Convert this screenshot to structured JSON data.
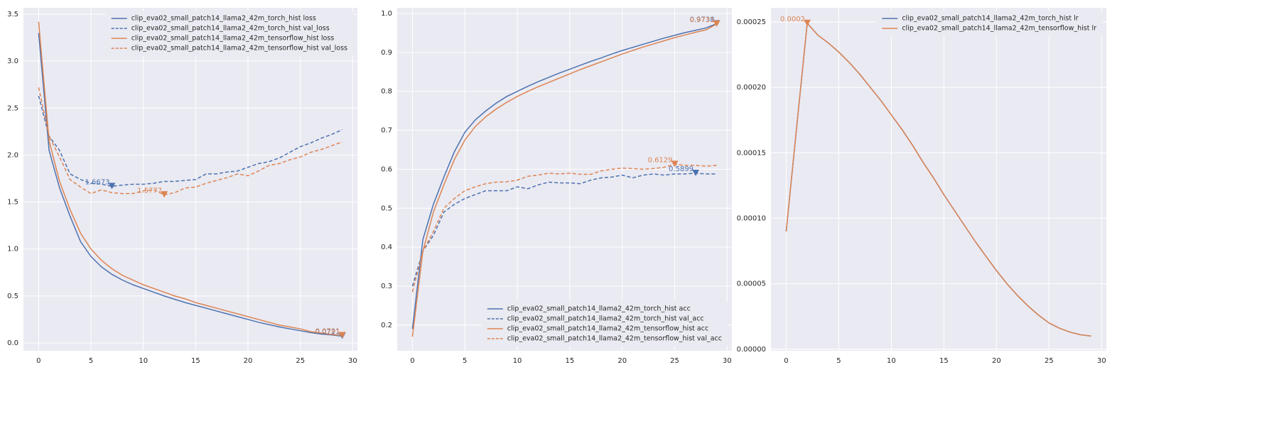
{
  "chart_data": [
    {
      "type": "line",
      "grid": true,
      "legend": "upper right",
      "x": [
        0,
        1,
        2,
        3,
        4,
        5,
        6,
        7,
        8,
        9,
        10,
        11,
        12,
        13,
        14,
        15,
        16,
        17,
        18,
        19,
        20,
        21,
        22,
        23,
        24,
        25,
        26,
        27,
        28,
        29
      ],
      "xlim": [
        -1.45,
        30.45
      ],
      "xticks": [
        0,
        5,
        10,
        15,
        20,
        25,
        30
      ],
      "ylim": [
        -0.083,
        3.568
      ],
      "yticks": [
        {
          "value": 0,
          "label": "0.0"
        },
        0.5,
        {
          "value": 1,
          "label": "1.0"
        },
        1.5,
        {
          "value": 2,
          "label": "2.0"
        },
        2.5,
        {
          "value": 3,
          "label": "3.0"
        },
        3.5
      ],
      "series": [
        {
          "name": "clip_eva02_small_patch14_llama2_42m_torch_hist loss",
          "color": "#4c72b0",
          "linestyle": "solid",
          "values": [
            3.3,
            2.05,
            1.65,
            1.35,
            1.08,
            0.92,
            0.81,
            0.73,
            0.67,
            0.62,
            0.58,
            0.54,
            0.5,
            0.465,
            0.43,
            0.4,
            0.37,
            0.34,
            0.31,
            0.28,
            0.25,
            0.22,
            0.195,
            0.17,
            0.15,
            0.13,
            0.11,
            0.095,
            0.085,
            0.0721
          ]
        },
        {
          "name": "clip_eva02_small_patch14_llama2_42m_torch_hist val_loss",
          "color": "#4c72b0",
          "linestyle": "dashed",
          "values": [
            2.63,
            2.2,
            2.05,
            1.8,
            1.74,
            1.7,
            1.69,
            1.6673,
            1.68,
            1.69,
            1.69,
            1.7,
            1.72,
            1.72,
            1.73,
            1.74,
            1.8,
            1.8,
            1.82,
            1.83,
            1.87,
            1.91,
            1.93,
            1.97,
            2.03,
            2.09,
            2.13,
            2.18,
            2.22,
            2.27
          ]
        },
        {
          "name": "clip_eva02_small_patch14_llama2_42m_tensorflow_hist loss",
          "color": "#dd8452",
          "linestyle": "solid",
          "values": [
            3.42,
            2.15,
            1.72,
            1.42,
            1.17,
            1.0,
            0.88,
            0.79,
            0.72,
            0.67,
            0.62,
            0.58,
            0.54,
            0.5,
            0.47,
            0.43,
            0.4,
            0.37,
            0.34,
            0.31,
            0.28,
            0.25,
            0.22,
            0.19,
            0.17,
            0.15,
            0.12,
            0.105,
            0.09,
            0.0791
          ]
        },
        {
          "name": "clip_eva02_small_patch14_llama2_42m_tensorflow_hist val_loss",
          "color": "#dd8452",
          "linestyle": "dashed",
          "values": [
            2.72,
            2.2,
            1.98,
            1.74,
            1.66,
            1.59,
            1.63,
            1.6,
            1.59,
            1.59,
            1.62,
            1.63,
            1.5777,
            1.6,
            1.65,
            1.66,
            1.7,
            1.73,
            1.76,
            1.8,
            1.78,
            1.83,
            1.89,
            1.91,
            1.95,
            1.98,
            2.03,
            2.06,
            2.1,
            2.14
          ]
        }
      ],
      "annotations": [
        {
          "x": 7,
          "y": 1.6673,
          "text": "1.6673",
          "color": "#4c72b0"
        },
        {
          "x": 12,
          "y": 1.5777,
          "text": "1.5777",
          "color": "#dd8452"
        },
        {
          "x": 29,
          "y": 0.0721,
          "text": "0.0721",
          "color": "#4c72b0"
        },
        {
          "x": 29,
          "y": 0.0791,
          "text": "0.0791",
          "color": "#dd8452"
        }
      ]
    },
    {
      "type": "line",
      "grid": true,
      "legend": "lower right",
      "x": [
        0,
        1,
        2,
        3,
        4,
        5,
        6,
        7,
        8,
        9,
        10,
        11,
        12,
        13,
        14,
        15,
        16,
        17,
        18,
        19,
        20,
        21,
        22,
        23,
        24,
        25,
        26,
        27,
        28,
        29
      ],
      "xlim": [
        -1.45,
        30.45
      ],
      "xticks": [
        0,
        5,
        10,
        15,
        20,
        25,
        30
      ],
      "ylim": [
        0.134,
        1.0146
      ],
      "yticks": [
        0.2,
        0.3,
        0.4,
        0.5,
        0.6,
        0.7,
        0.8,
        0.9,
        {
          "value": 1,
          "label": "1.0"
        }
      ],
      "series": [
        {
          "name": "clip_eva02_small_patch14_llama2_42m_torch_hist acc",
          "color": "#4c72b0",
          "linestyle": "solid",
          "values": [
            0.19,
            0.42,
            0.51,
            0.58,
            0.645,
            0.695,
            0.727,
            0.75,
            0.77,
            0.787,
            0.8,
            0.813,
            0.825,
            0.836,
            0.847,
            0.857,
            0.867,
            0.877,
            0.886,
            0.896,
            0.905,
            0.913,
            0.921,
            0.929,
            0.937,
            0.944,
            0.951,
            0.957,
            0.963,
            0.9738
          ]
        },
        {
          "name": "clip_eva02_small_patch14_llama2_42m_torch_hist val_acc",
          "color": "#4c72b0",
          "linestyle": "dashed",
          "values": [
            0.3,
            0.39,
            0.43,
            0.49,
            0.51,
            0.525,
            0.535,
            0.545,
            0.545,
            0.545,
            0.555,
            0.55,
            0.56,
            0.567,
            0.565,
            0.565,
            0.563,
            0.572,
            0.578,
            0.58,
            0.585,
            0.578,
            0.585,
            0.588,
            0.585,
            0.588,
            0.588,
            0.5899,
            0.588,
            0.588
          ]
        },
        {
          "name": "clip_eva02_small_patch14_llama2_42m_tensorflow_hist acc",
          "color": "#dd8452",
          "linestyle": "solid",
          "values": [
            0.17,
            0.39,
            0.49,
            0.56,
            0.625,
            0.675,
            0.71,
            0.735,
            0.755,
            0.772,
            0.787,
            0.8,
            0.812,
            0.823,
            0.834,
            0.845,
            0.856,
            0.866,
            0.876,
            0.886,
            0.896,
            0.905,
            0.914,
            0.922,
            0.93,
            0.938,
            0.945,
            0.952,
            0.958,
            0.9731
          ]
        },
        {
          "name": "clip_eva02_small_patch14_llama2_42m_tensorflow_hist val_acc",
          "color": "#dd8452",
          "linestyle": "dashed",
          "values": [
            0.285,
            0.39,
            0.44,
            0.5,
            0.525,
            0.545,
            0.555,
            0.563,
            0.567,
            0.568,
            0.572,
            0.582,
            0.585,
            0.59,
            0.588,
            0.59,
            0.587,
            0.587,
            0.596,
            0.6,
            0.603,
            0.602,
            0.6,
            0.602,
            0.605,
            0.6129,
            0.61,
            0.61,
            0.608,
            0.61
          ]
        }
      ],
      "annotations": [
        {
          "x": 29,
          "y": 0.9738,
          "text": "0.9738",
          "color": "#4c72b0"
        },
        {
          "x": 29,
          "y": 0.9731,
          "text": "0.9731",
          "color": "#dd8452"
        },
        {
          "x": 27,
          "y": 0.5899,
          "text": "0.5899",
          "color": "#4c72b0"
        },
        {
          "x": 25,
          "y": 0.6129,
          "text": "0.6129",
          "color": "#dd8452"
        }
      ]
    },
    {
      "type": "line",
      "grid": true,
      "legend": "upper right",
      "x": [
        0,
        1,
        2,
        3,
        4,
        5,
        6,
        7,
        8,
        9,
        10,
        11,
        12,
        13,
        14,
        15,
        16,
        17,
        18,
        19,
        20,
        21,
        22,
        23,
        24,
        25,
        26,
        27,
        28,
        29
      ],
      "xlim": [
        -1.45,
        30.45
      ],
      "xticks": [
        0,
        5,
        10,
        15,
        20,
        25,
        30
      ],
      "ylim": [
        -1.2e-06,
        0.0002608
      ],
      "yticks": [
        {
          "value": 0,
          "label": "0.00000"
        },
        {
          "value": 5e-05,
          "label": "0.00005"
        },
        {
          "value": 0.0001,
          "label": "0.00010"
        },
        {
          "value": 0.00015,
          "label": "0.00015"
        },
        {
          "value": 0.0002,
          "label": "0.00020"
        },
        {
          "value": 0.00025,
          "label": "0.00025"
        }
      ],
      "series": [
        {
          "name": "clip_eva02_small_patch14_llama2_42m_torch_hist lr",
          "color": "#4c72b0",
          "linestyle": "solid",
          "values": [
            9e-05,
            0.00017,
            0.000249,
            0.00024,
            0.000234,
            0.000227,
            0.000219,
            0.00021,
            0.0002,
            0.00019,
            0.000179,
            0.000168,
            0.000156,
            0.000143,
            0.000131,
            0.000118,
            0.000106,
            9.4e-05,
            8.2e-05,
            7.1e-05,
            6e-05,
            5e-05,
            4.1e-05,
            3.3e-05,
            2.6e-05,
            2e-05,
            1.6e-05,
            1.3e-05,
            1.1e-05,
            1e-05
          ]
        },
        {
          "name": "clip_eva02_small_patch14_llama2_42m_tensorflow_hist lr",
          "color": "#dd8452",
          "linestyle": "solid",
          "values": [
            9e-05,
            0.00017,
            0.000249,
            0.00024,
            0.000234,
            0.000227,
            0.000219,
            0.00021,
            0.0002,
            0.00019,
            0.000179,
            0.000168,
            0.000156,
            0.000143,
            0.000131,
            0.000118,
            0.000106,
            9.4e-05,
            8.2e-05,
            7.1e-05,
            6e-05,
            5e-05,
            4.1e-05,
            3.3e-05,
            2.6e-05,
            2e-05,
            1.6e-05,
            1.3e-05,
            1.1e-05,
            1e-05
          ]
        }
      ],
      "annotations": [
        {
          "x": 2,
          "y": 0.000249,
          "text": "0.0002",
          "color": "#dd8452"
        }
      ]
    }
  ]
}
